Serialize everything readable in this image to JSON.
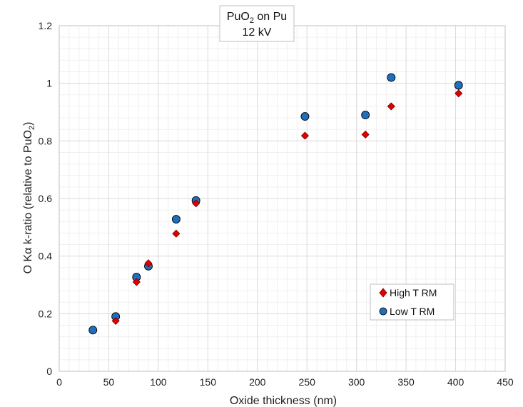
{
  "chart_data": {
    "type": "scatter",
    "title_line1": {
      "base": "PuO",
      "sub": "2",
      "rest": " on Pu"
    },
    "title_line2": "12 kV",
    "xlabel": "Oxide thickness (nm)",
    "ylabel": {
      "base": "O Kα k-ratio (relative to PuO",
      "sub": "2",
      "rest": ")"
    },
    "xlim": [
      0,
      450
    ],
    "ylim": [
      0,
      1.2
    ],
    "xticks": [
      0,
      50,
      100,
      150,
      200,
      250,
      300,
      350,
      400,
      450
    ],
    "yticks": [
      0,
      0.2,
      0.4,
      0.6,
      0.8,
      1,
      1.2
    ],
    "xtick_labels": [
      "0",
      "50",
      "100",
      "150",
      "200",
      "250",
      "300",
      "350",
      "400",
      "450"
    ],
    "ytick_labels": [
      "0",
      "0.2",
      "0.4",
      "0.6",
      "0.8",
      "1",
      "1.2"
    ],
    "grid": true,
    "legend_position": "bottom-right",
    "series": [
      {
        "name": "High T RM",
        "marker": "diamond",
        "color": "#e00000",
        "x": [
          57,
          78,
          90,
          118,
          138,
          248,
          309,
          335,
          403
        ],
        "y": [
          0.175,
          0.31,
          0.375,
          0.478,
          0.583,
          0.818,
          0.822,
          0.92,
          0.965
        ]
      },
      {
        "name": "Low T RM",
        "marker": "circle",
        "color": "#1f6fbf",
        "x": [
          34,
          57,
          78,
          90,
          118,
          138,
          248,
          309,
          335,
          403
        ],
        "y": [
          0.143,
          0.19,
          0.327,
          0.365,
          0.528,
          0.593,
          0.885,
          0.89,
          1.02,
          0.993
        ]
      }
    ]
  }
}
